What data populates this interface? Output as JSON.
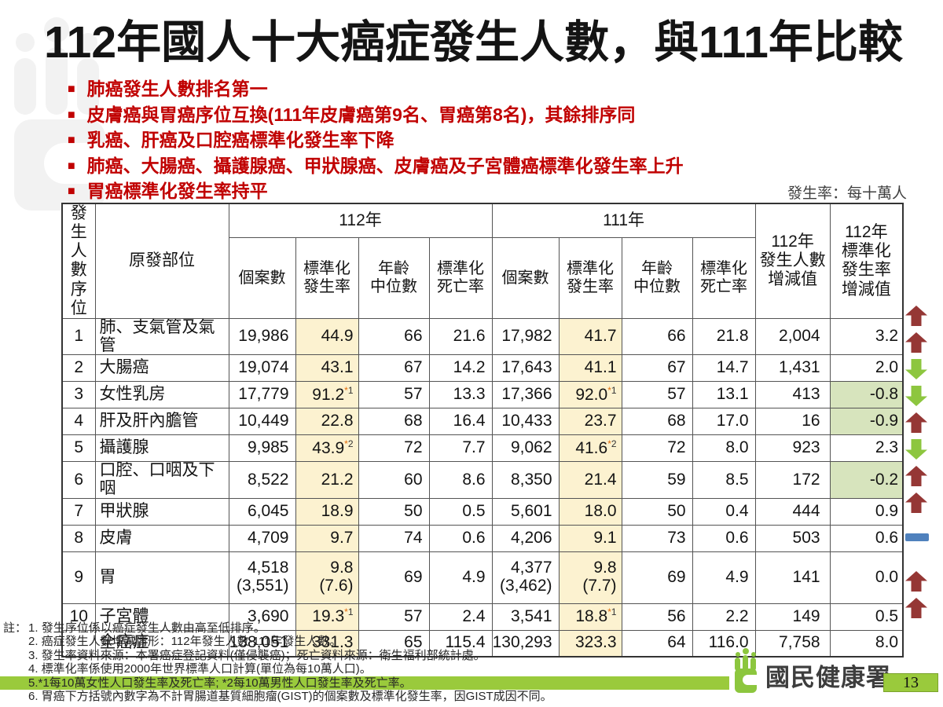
{
  "title": "112年國人十大癌症發生人數，與111年比較",
  "bullets": [
    "肺癌發生人數排名第一",
    "皮膚癌與胃癌序位互換(111年皮膚癌第9名、胃癌第8名)，其餘排序同",
    "乳癌、肝癌及口腔癌標準化發生率下降",
    "肺癌、大腸癌、攝護腺癌、甲狀腺癌、皮膚癌及子宮體癌標準化發生率上升",
    "胃癌標準化發生率持平"
  ],
  "unit_note": "發生率：每十萬人",
  "table": {
    "rank_header": "發生\n人數\n序位",
    "site_header": "原發部位",
    "year_groups": [
      "112年",
      "111年"
    ],
    "sub_headers": [
      "個案數",
      "標準化\n發生率",
      "年齡\n中位數",
      "標準化\n死亡率"
    ],
    "diff_count_header": "112年\n發生人數\n增減值",
    "diff_rate_header": "112年\n標準化\n發生率\n增減值",
    "rows": [
      {
        "rank": "1",
        "site": "肺、支氣管及氣管",
        "c112": {
          "cases": "19,986",
          "asr": "44.9",
          "sup": "",
          "age": "66",
          "mort": "21.6"
        },
        "c111": {
          "cases": "17,982",
          "asr": "41.7",
          "sup": "",
          "age": "66",
          "mort": "21.8"
        },
        "diff_count": "2,004",
        "diff_rate": "3.2",
        "trend": "up",
        "tall": false
      },
      {
        "rank": "2",
        "site": "大腸癌",
        "c112": {
          "cases": "19,074",
          "asr": "43.1",
          "sup": "",
          "age": "67",
          "mort": "14.2"
        },
        "c111": {
          "cases": "17,643",
          "asr": "41.1",
          "sup": "",
          "age": "67",
          "mort": "14.7"
        },
        "diff_count": "1,431",
        "diff_rate": "2.0",
        "trend": "up",
        "tall": false
      },
      {
        "rank": "3",
        "site": "女性乳房",
        "c112": {
          "cases": "17,779",
          "asr": "91.2",
          "sup": "*1",
          "age": "57",
          "mort": "13.3"
        },
        "c111": {
          "cases": "17,366",
          "asr": "92.0",
          "sup": "*1",
          "age": "57",
          "mort": "13.1"
        },
        "diff_count": "413",
        "diff_rate": "-0.8",
        "trend": "down",
        "tall": false
      },
      {
        "rank": "4",
        "site": "肝及肝內膽管",
        "c112": {
          "cases": "10,449",
          "asr": "22.8",
          "sup": "",
          "age": "68",
          "mort": "16.4"
        },
        "c111": {
          "cases": "10,433",
          "asr": "23.7",
          "sup": "",
          "age": "68",
          "mort": "17.0"
        },
        "diff_count": "16",
        "diff_rate": "-0.9",
        "trend": "down",
        "tall": false
      },
      {
        "rank": "5",
        "site": "攝護腺",
        "c112": {
          "cases": "9,985",
          "asr": "43.9",
          "sup": "*2",
          "age": "72",
          "mort": "7.7"
        },
        "c111": {
          "cases": "9,062",
          "asr": "41.6",
          "sup": "*2",
          "age": "72",
          "mort": "8.0"
        },
        "diff_count": "923",
        "diff_rate": "2.3",
        "trend": "up",
        "tall": false
      },
      {
        "rank": "6",
        "site": "口腔、口咽及下咽",
        "c112": {
          "cases": "8,522",
          "asr": "21.2",
          "sup": "",
          "age": "60",
          "mort": "8.6"
        },
        "c111": {
          "cases": "8,350",
          "asr": "21.4",
          "sup": "",
          "age": "59",
          "mort": "8.5"
        },
        "diff_count": "172",
        "diff_rate": "-0.2",
        "trend": "down",
        "tall": false
      },
      {
        "rank": "7",
        "site": "甲狀腺",
        "c112": {
          "cases": "6,045",
          "asr": "18.9",
          "sup": "",
          "age": "50",
          "mort": "0.5"
        },
        "c111": {
          "cases": "5,601",
          "asr": "18.0",
          "sup": "",
          "age": "50",
          "mort": "0.4"
        },
        "diff_count": "444",
        "diff_rate": "0.9",
        "trend": "up",
        "tall": false
      },
      {
        "rank": "8",
        "site": "皮膚",
        "c112": {
          "cases": "4,709",
          "asr": "9.7",
          "sup": "",
          "age": "74",
          "mort": "0.6"
        },
        "c111": {
          "cases": "4,206",
          "asr": "9.1",
          "sup": "",
          "age": "73",
          "mort": "0.6"
        },
        "diff_count": "503",
        "diff_rate": "0.6",
        "trend": "up",
        "tall": false
      },
      {
        "rank": "9",
        "site": "胃",
        "c112": {
          "cases": "4,518\n(3,551)",
          "asr": "9.8\n(7.6)",
          "sup": "",
          "age": "69",
          "mort": "4.9"
        },
        "c111": {
          "cases": "4,377\n(3,462)",
          "asr": "9.8\n(7.7)",
          "sup": "",
          "age": "69",
          "mort": "4.9"
        },
        "diff_count": "141",
        "diff_rate": "0.0",
        "trend": "flat",
        "tall": true
      },
      {
        "rank": "10",
        "site": "子宮體",
        "c112": {
          "cases": "3,690",
          "asr": "19.3",
          "sup": "*1",
          "age": "57",
          "mort": "2.4"
        },
        "c111": {
          "cases": "3,541",
          "asr": "18.8",
          "sup": "*1",
          "age": "56",
          "mort": "2.2"
        },
        "diff_count": "149",
        "diff_rate": "0.5",
        "trend": "up",
        "tall": false
      },
      {
        "rank": "",
        "site": "全癌症",
        "c112": {
          "cases": "138,051",
          "asr": "331.3",
          "sup": "",
          "age": "65",
          "mort": "115.4"
        },
        "c111": {
          "cases": "130,293",
          "asr": "323.3",
          "sup": "",
          "age": "64",
          "mort": "116.0"
        },
        "diff_count": "7,758",
        "diff_rate": "8.0",
        "trend": "up",
        "tall": false
      }
    ]
  },
  "notes": {
    "label": "註：",
    "items": [
      {
        "text": "1. 發生序位係以癌症發生人數由高至低排序。",
        "highlight": false
      },
      {
        "text": "2. 癌症發生人數增減情形：112年發生人數-111年發生人數。",
        "highlight": false
      },
      {
        "text": "3. 發生率資料來源：本署癌症登記資料(僅侵襲癌)；死亡資料來源：衛生福利部統計處。",
        "highlight": false
      },
      {
        "text": "4. 標準化率係使用2000年世界標準人口計算(單位為每10萬人口)。",
        "highlight": false
      },
      {
        "text": "5.*1每10萬女性人口發生率及死亡率; *2每10萬男性人口發生率及死亡率。",
        "highlight": true
      },
      {
        "text": "6. 胃癌下方括號內數字為不計胃腸道基質細胞瘤(GIST)的個案數及標準化發生率，因GIST成因不同。",
        "highlight": false
      }
    ]
  },
  "footer": {
    "agency": "國民健康署",
    "page": "13"
  },
  "colors": {
    "accent_red": "#c00000",
    "asr_col_bg": "#fcf2d0",
    "down_cell_bg": "#d7e4bd",
    "up_arrow": "#953735",
    "down_arrow": "#8dc63f",
    "flat_dash": "#4f81bd",
    "highlight_green": "#9aca3c",
    "logo_green": "#8cc63e"
  }
}
